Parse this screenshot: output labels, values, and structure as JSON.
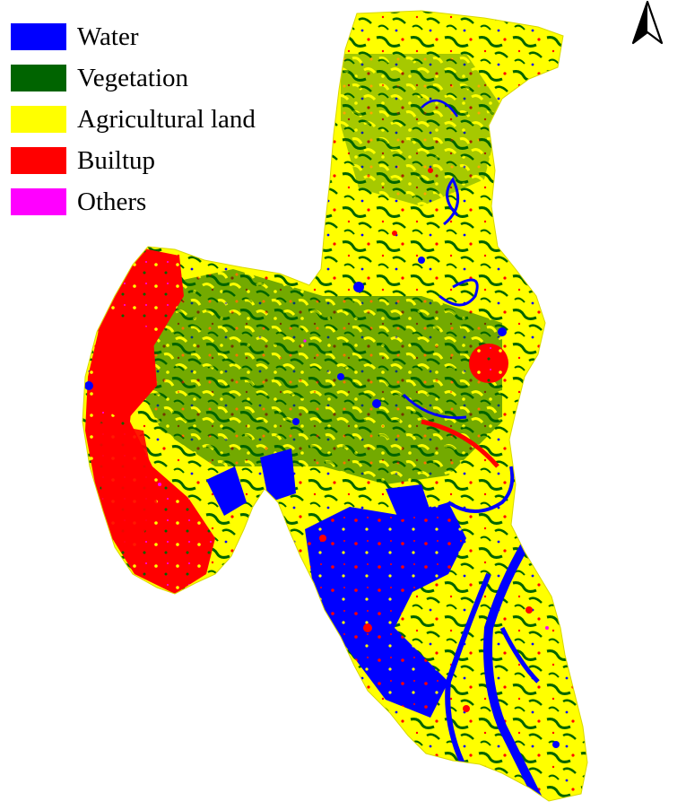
{
  "legend": {
    "items": [
      {
        "label": "Water",
        "color": "#0000ff"
      },
      {
        "label": "Vegetation",
        "color": "#006400"
      },
      {
        "label": "Agricultural land",
        "color": "#ffff00"
      },
      {
        "label": "Builtup",
        "color": "#ff0000"
      },
      {
        "label": "Others",
        "color": "#ff00ff"
      }
    ]
  },
  "map": {
    "north_arrow": "north-arrow-icon",
    "classes": {
      "water": "#0000ff",
      "vegetation": "#006400",
      "agricultural": "#ffff00",
      "builtup": "#ff0000",
      "others": "#ff00ff"
    }
  }
}
